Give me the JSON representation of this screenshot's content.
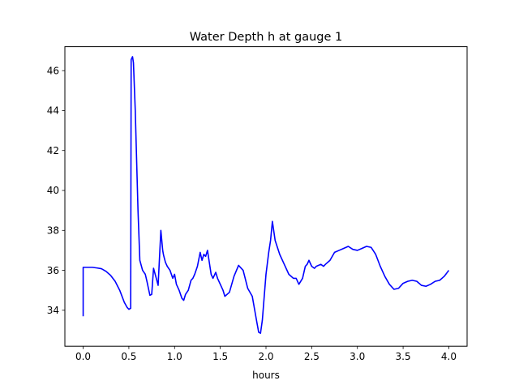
{
  "chart_data": {
    "type": "line",
    "title": "Water Depth h at gauge 1",
    "xlabel": "hours",
    "ylabel": "",
    "xlim": [
      -0.2,
      4.2
    ],
    "ylim": [
      32.2,
      47.2
    ],
    "xticks": [
      0.0,
      0.5,
      1.0,
      1.5,
      2.0,
      2.5,
      3.0,
      3.5,
      4.0
    ],
    "xtick_labels": [
      "0.0",
      "0.5",
      "1.0",
      "1.5",
      "2.0",
      "2.5",
      "3.0",
      "3.5",
      "4.0"
    ],
    "yticks": [
      34,
      36,
      38,
      40,
      42,
      44,
      46
    ],
    "ytick_labels": [
      "34",
      "36",
      "38",
      "40",
      "42",
      "44",
      "46"
    ],
    "grid": false,
    "series": [
      {
        "color": "#0000ff",
        "x": [
          0.0,
          0.0,
          0.05,
          0.1,
          0.15,
          0.2,
          0.25,
          0.3,
          0.35,
          0.4,
          0.45,
          0.48,
          0.5,
          0.52,
          0.525,
          0.54,
          0.55,
          0.57,
          0.6,
          0.62,
          0.65,
          0.68,
          0.7,
          0.73,
          0.75,
          0.77,
          0.8,
          0.82,
          0.85,
          0.87,
          0.88,
          0.9,
          0.92,
          0.95,
          0.98,
          1.0,
          1.02,
          1.05,
          1.08,
          1.1,
          1.12,
          1.15,
          1.18,
          1.2,
          1.22,
          1.25,
          1.28,
          1.3,
          1.32,
          1.34,
          1.36,
          1.38,
          1.4,
          1.42,
          1.45,
          1.47,
          1.5,
          1.53,
          1.55,
          1.6,
          1.65,
          1.7,
          1.75,
          1.8,
          1.85,
          1.9,
          1.92,
          1.94,
          1.96,
          2.0,
          2.03,
          2.05,
          2.07,
          2.1,
          2.15,
          2.2,
          2.25,
          2.3,
          2.33,
          2.36,
          2.4,
          2.43,
          2.45,
          2.47,
          2.5,
          2.53,
          2.55,
          2.6,
          2.63,
          2.65,
          2.7,
          2.75,
          2.8,
          2.85,
          2.9,
          2.95,
          3.0,
          3.05,
          3.1,
          3.15,
          3.2,
          3.25,
          3.3,
          3.35,
          3.4,
          3.45,
          3.5,
          3.55,
          3.6,
          3.65,
          3.7,
          3.75,
          3.8,
          3.85,
          3.9,
          3.95,
          4.0
        ],
        "y": [
          33.7,
          36.15,
          36.15,
          36.15,
          36.12,
          36.08,
          35.95,
          35.75,
          35.45,
          35.0,
          34.4,
          34.15,
          34.05,
          34.1,
          46.55,
          46.7,
          46.4,
          44.0,
          39.0,
          36.5,
          36.0,
          35.8,
          35.4,
          34.75,
          34.8,
          36.1,
          35.6,
          35.25,
          38.0,
          37.0,
          36.75,
          36.4,
          36.2,
          36.0,
          35.6,
          35.8,
          35.3,
          35.0,
          34.6,
          34.5,
          34.8,
          35.0,
          35.5,
          35.6,
          35.8,
          36.2,
          36.9,
          36.5,
          36.8,
          36.7,
          37.0,
          36.4,
          35.8,
          35.6,
          35.9,
          35.6,
          35.3,
          35.0,
          34.7,
          34.9,
          35.7,
          36.25,
          36.0,
          35.1,
          34.7,
          33.4,
          32.9,
          32.85,
          33.5,
          35.8,
          36.9,
          37.5,
          38.45,
          37.5,
          36.8,
          36.3,
          35.8,
          35.6,
          35.6,
          35.3,
          35.6,
          36.2,
          36.3,
          36.5,
          36.2,
          36.1,
          36.2,
          36.3,
          36.2,
          36.3,
          36.5,
          36.9,
          37.0,
          37.1,
          37.2,
          37.05,
          37.0,
          37.1,
          37.2,
          37.15,
          36.8,
          36.2,
          35.7,
          35.3,
          35.05,
          35.1,
          35.35,
          35.45,
          35.5,
          35.45,
          35.25,
          35.2,
          35.3,
          35.45,
          35.5,
          35.7,
          36.0
        ]
      }
    ]
  }
}
